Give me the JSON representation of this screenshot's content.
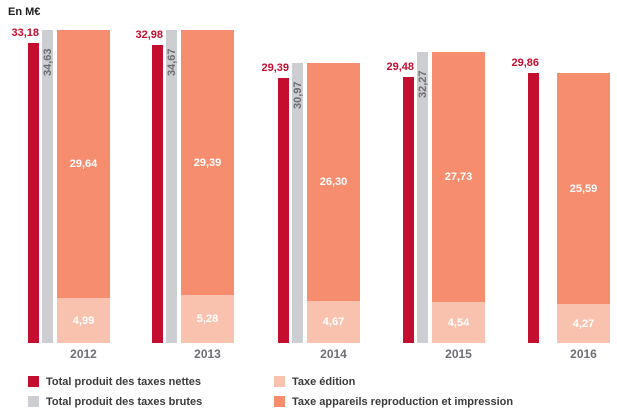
{
  "unit_label": "En M€",
  "colors": {
    "nettes": "#c30e2f",
    "brutes": "#cdced2",
    "edition": "#f9c2ae",
    "appareils": "#f68d6f",
    "axis_text": "#6e6e74",
    "background": "#ffffff"
  },
  "chart_data": {
    "type": "bar",
    "title": "",
    "ylabel": "En M€",
    "xlabel": "",
    "ylim": [
      0,
      36
    ],
    "grid": false,
    "legend_position": "bottom",
    "categories": [
      "2012",
      "2013",
      "2014",
      "2015",
      "2016"
    ],
    "series": [
      {
        "name": "Total produit des taxes nettes",
        "role": "grouped-bar",
        "color": "#c30e2f",
        "values": [
          33.18,
          32.98,
          29.39,
          29.48,
          29.86
        ],
        "display": [
          "33,18",
          "32,98",
          "29,39",
          "29,48",
          "29,86"
        ]
      },
      {
        "name": "Total produit des taxes brutes",
        "role": "grouped-bar",
        "color": "#cdced2",
        "values": [
          34.63,
          34.67,
          30.97,
          32.27,
          null
        ],
        "display": [
          "34,63",
          "34,67",
          "30,97",
          "32,27",
          null
        ]
      },
      {
        "name": "Taxe édition",
        "role": "stacked-bar-bottom",
        "color": "#f9c2ae",
        "values": [
          4.99,
          5.28,
          4.67,
          4.54,
          4.27
        ],
        "display": [
          "4,99",
          "5,28",
          "4,67",
          "4,54",
          "4,27"
        ]
      },
      {
        "name": "Taxe appareils reproduction et impression",
        "role": "stacked-bar-top",
        "color": "#f68d6f",
        "values": [
          29.64,
          29.39,
          26.3,
          27.73,
          25.59
        ],
        "display": [
          "29,64",
          "29,39",
          "26,30",
          "27,73",
          "25,59"
        ]
      }
    ]
  },
  "legend": {
    "items": [
      {
        "label": "Total produit des taxes nettes",
        "color": "#c30e2f"
      },
      {
        "label": "Total produit des taxes brutes",
        "color": "#cdced2"
      },
      {
        "label": "Taxe édition",
        "color": "#f9c2ae"
      },
      {
        "label": "Taxe appareils reproduction et impression",
        "color": "#f68d6f"
      }
    ]
  }
}
